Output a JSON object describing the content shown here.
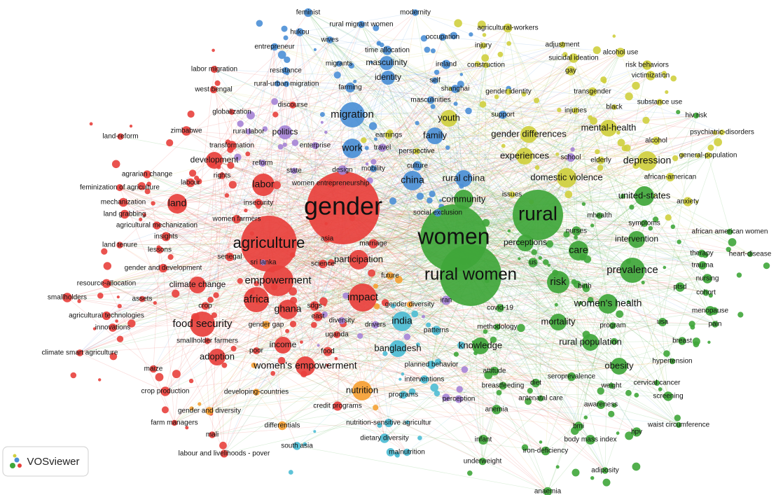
{
  "nodes": [
    {
      "label": "gender",
      "color": "#e8403c"
    },
    {
      "label": "women",
      "color": "#3fa63a"
    },
    {
      "label": "rural women",
      "color": "#3fa63a"
    },
    {
      "label": "rural",
      "color": "#3fa63a"
    },
    {
      "label": "agriculture",
      "color": "#e8403c"
    },
    {
      "label": "empowerment",
      "color": "#e8403c"
    },
    {
      "label": "food security",
      "color": "#e8403c"
    },
    {
      "label": "migration",
      "color": "#4b8fd6"
    },
    {
      "label": "africa",
      "color": "#e8403c"
    },
    {
      "label": "impact",
      "color": "#e8403c"
    },
    {
      "label": "prevalence",
      "color": "#3fa63a"
    },
    {
      "label": "women's health",
      "color": "#3fa63a"
    },
    {
      "label": "women's empowerment",
      "color": "#e8403c"
    },
    {
      "label": "labor",
      "color": "#e8403c"
    },
    {
      "label": "land",
      "color": "#e8403c"
    },
    {
      "label": "mental-health",
      "color": "#cfcf3e"
    },
    {
      "label": "depression",
      "color": "#cfcf3e"
    },
    {
      "label": "domestic violence",
      "color": "#cfcf3e"
    },
    {
      "label": "risk",
      "color": "#3fa63a"
    },
    {
      "label": "india",
      "color": "#4cbcd4"
    },
    {
      "label": "bangladesh",
      "color": "#4cbcd4"
    },
    {
      "label": "nutrition",
      "color": "#f5a033"
    },
    {
      "label": "adoption",
      "color": "#e8403c"
    },
    {
      "label": "ghana",
      "color": "#e8403c"
    },
    {
      "label": "gender differences",
      "color": "#cfcf3e"
    },
    {
      "label": "experiences",
      "color": "#cfcf3e"
    },
    {
      "label": "community",
      "color": "#3fa63a"
    },
    {
      "label": "rural china",
      "color": "#4b8fd6"
    },
    {
      "label": "china",
      "color": "#4b8fd6"
    },
    {
      "label": "work",
      "color": "#4b8fd6"
    },
    {
      "label": "participation",
      "color": "#e8403c"
    },
    {
      "label": "knowledge",
      "color": "#3fa63a"
    },
    {
      "label": "care",
      "color": "#3fa63a"
    },
    {
      "label": "mortality",
      "color": "#3fa63a"
    },
    {
      "label": "rural population",
      "color": "#3fa63a"
    },
    {
      "label": "obesity",
      "color": "#3fa63a"
    },
    {
      "label": "united-states",
      "color": "#3fa63a"
    },
    {
      "label": "intervention",
      "color": "#3fa63a"
    },
    {
      "label": "youth",
      "color": "#cfcf3e"
    },
    {
      "label": "family",
      "color": "#4b8fd6"
    },
    {
      "label": "development",
      "color": "#e8403c"
    },
    {
      "label": "climate change",
      "color": "#e8403c"
    },
    {
      "label": "income",
      "color": "#e8403c"
    },
    {
      "label": "politics",
      "color": "#a583d6"
    },
    {
      "label": "identity",
      "color": "#4b8fd6"
    },
    {
      "label": "masculinity",
      "color": "#4b8fd6"
    },
    {
      "label": "perceptions",
      "color": "#3fa63a"
    },
    {
      "label": "globalization",
      "color": "#e8403c"
    },
    {
      "label": "transformation",
      "color": "#e8403c"
    },
    {
      "label": "rights",
      "color": "#e8403c"
    },
    {
      "label": "state",
      "color": "#a583d6"
    },
    {
      "label": "labour",
      "color": "#e8403c"
    },
    {
      "label": "agrarian change",
      "color": "#e8403c"
    },
    {
      "label": "feminization of agriculture",
      "color": "#e8403c"
    },
    {
      "label": "mechanization",
      "color": "#e8403c"
    },
    {
      "label": "land grabbing",
      "color": "#e8403c"
    },
    {
      "label": "agricultural mechanization",
      "color": "#e8403c"
    },
    {
      "label": "women farmers",
      "color": "#e8403c"
    },
    {
      "label": "insecurity",
      "color": "#e8403c"
    },
    {
      "label": "insights",
      "color": "#e8403c"
    },
    {
      "label": "land tenure",
      "color": "#e8403c"
    },
    {
      "label": "lessons",
      "color": "#e8403c"
    },
    {
      "label": "senegal",
      "color": "#e8403c"
    },
    {
      "label": "gender and development",
      "color": "#e8403c"
    },
    {
      "label": "sri lanka",
      "color": "#a583d6"
    },
    {
      "label": "science",
      "color": "#e8403c"
    },
    {
      "label": "asia",
      "color": "#e8403c"
    },
    {
      "label": "marriage",
      "color": "#e8403c"
    },
    {
      "label": "resource-allocation",
      "color": "#e8403c"
    },
    {
      "label": "assets",
      "color": "#e8403c"
    },
    {
      "label": "crop",
      "color": "#e8403c"
    },
    {
      "label": "smallholders",
      "color": "#e8403c"
    },
    {
      "label": "agricultural technologies",
      "color": "#e8403c"
    },
    {
      "label": "innovations",
      "color": "#e8403c"
    },
    {
      "label": "gender gap",
      "color": "#f5a033"
    },
    {
      "label": "sdgs",
      "color": "#e8403c"
    },
    {
      "label": "east",
      "color": "#e8403c"
    },
    {
      "label": "diversity",
      "color": "#a583d6"
    },
    {
      "label": "uganda",
      "color": "#e8403c"
    },
    {
      "label": "food",
      "color": "#e8403c"
    },
    {
      "label": "poor",
      "color": "#e8403c"
    },
    {
      "label": "smallholder farmers",
      "color": "#e8403c"
    },
    {
      "label": "climate smart agriculture",
      "color": "#e8403c"
    },
    {
      "label": "maize",
      "color": "#e8403c"
    },
    {
      "label": "developing-countries",
      "color": "#f5a033"
    },
    {
      "label": "crop production",
      "color": "#e8403c"
    },
    {
      "label": "gender and diversity",
      "color": "#f5a033"
    },
    {
      "label": "differentials",
      "color": "#f5a033"
    },
    {
      "label": "credit programs",
      "color": "#e8403c"
    },
    {
      "label": "farm managers",
      "color": "#e8403c"
    },
    {
      "label": "mali",
      "color": "#e8403c"
    },
    {
      "label": "south asia",
      "color": "#4cbcd4"
    },
    {
      "label": "labour and livelihoods - pover",
      "color": "#e8403c"
    },
    {
      "label": "west bengal",
      "color": "#e8403c"
    },
    {
      "label": "land-reform",
      "color": "#e8403c"
    },
    {
      "label": "zimbabwe",
      "color": "#e8403c"
    },
    {
      "label": "rural labor",
      "color": "#a583d6"
    },
    {
      "label": "enterprise",
      "color": "#a583d6"
    },
    {
      "label": "reform",
      "color": "#a583d6"
    },
    {
      "label": "women entrepreneurship",
      "color": "#e8403c"
    },
    {
      "label": "design",
      "color": "#a583d6"
    },
    {
      "label": "future",
      "color": "#f5a033"
    },
    {
      "label": "gender diversity",
      "color": "#f5a033"
    },
    {
      "label": "drivers",
      "color": "#a583d6"
    },
    {
      "label": "discourse",
      "color": "#e8403c"
    },
    {
      "label": "labor migration",
      "color": "#e8403c"
    },
    {
      "label": "entrepreneur",
      "color": "#4b8fd6"
    },
    {
      "label": "mobility",
      "color": "#4b8fd6"
    },
    {
      "label": "earnings",
      "color": "#cfcf3e"
    },
    {
      "label": "travel",
      "color": "#a583d6"
    },
    {
      "label": "perspective",
      "color": "#cfcf3e"
    },
    {
      "label": "culture",
      "color": "#4b8fd6"
    },
    {
      "label": "social exclusion",
      "color": "#4b8fd6"
    },
    {
      "label": "iran",
      "color": "#a583d6"
    },
    {
      "label": "planned behavior",
      "color": "#4cbcd4"
    },
    {
      "label": "interventions",
      "color": "#4cbcd4"
    },
    {
      "label": "programs",
      "color": "#4cbcd4"
    },
    {
      "label": "perception",
      "color": "#a583d6"
    },
    {
      "label": "nutrition-sensitive agricultur",
      "color": "#4cbcd4"
    },
    {
      "label": "dietary diversity",
      "color": "#4cbcd4"
    },
    {
      "label": "malnutrition",
      "color": "#4cbcd4"
    },
    {
      "label": "feminist",
      "color": "#4b8fd6"
    },
    {
      "label": "modernity",
      "color": "#4b8fd6"
    },
    {
      "label": "hukou",
      "color": "#4b8fd6"
    },
    {
      "label": "rural migrant women",
      "color": "#4b8fd6"
    },
    {
      "label": "wives",
      "color": "#4b8fd6"
    },
    {
      "label": "occupation",
      "color": "#4b8fd6"
    },
    {
      "label": "agricultural-workers",
      "color": "#cfcf3e"
    },
    {
      "label": "time allocation",
      "color": "#4b8fd6"
    },
    {
      "label": "migrants",
      "color": "#4b8fd6"
    },
    {
      "label": "ireland",
      "color": "#4b8fd6"
    },
    {
      "label": "construction",
      "color": "#cfcf3e"
    },
    {
      "label": "resistance",
      "color": "#4b8fd6"
    },
    {
      "label": "injury",
      "color": "#cfcf3e"
    },
    {
      "label": "rural-urban migration",
      "color": "#4b8fd6"
    },
    {
      "label": "farming",
      "color": "#4b8fd6"
    },
    {
      "label": "self",
      "color": "#4b8fd6"
    },
    {
      "label": "shanghai",
      "color": "#4b8fd6"
    },
    {
      "label": "gender identity",
      "color": "#cfcf3e"
    },
    {
      "label": "masculinities",
      "color": "#4b8fd6"
    },
    {
      "label": "support",
      "color": "#4b8fd6"
    },
    {
      "label": "adjustment",
      "color": "#cfcf3e"
    },
    {
      "label": "suicidal ideation",
      "color": "#cfcf3e"
    },
    {
      "label": "alcohol use",
      "color": "#cfcf3e"
    },
    {
      "label": "risk behaviors",
      "color": "#cfcf3e"
    },
    {
      "label": "gay",
      "color": "#cfcf3e"
    },
    {
      "label": "victimization",
      "color": "#cfcf3e"
    },
    {
      "label": "transgender",
      "color": "#cfcf3e"
    },
    {
      "label": "substance use",
      "color": "#cfcf3e"
    },
    {
      "label": "black",
      "color": "#cfcf3e"
    },
    {
      "label": "injuries",
      "color": "#cfcf3e"
    },
    {
      "label": "hiv risk",
      "color": "#3fa63a"
    },
    {
      "label": "psychiatric-disorders",
      "color": "#cfcf3e"
    },
    {
      "label": "alcohol",
      "color": "#cfcf3e"
    },
    {
      "label": "general-population",
      "color": "#cfcf3e"
    },
    {
      "label": "school",
      "color": "#a583d6"
    },
    {
      "label": "elderly",
      "color": "#cfcf3e"
    },
    {
      "label": "african-american",
      "color": "#cfcf3e"
    },
    {
      "label": "issues",
      "color": "#cfcf3e"
    },
    {
      "label": "anxiety",
      "color": "#cfcf3e"
    },
    {
      "label": "mhealth",
      "color": "#3fa63a"
    },
    {
      "label": "symptoms",
      "color": "#3fa63a"
    },
    {
      "label": "nurses",
      "color": "#3fa63a"
    },
    {
      "label": "african american women",
      "color": "#3fa63a"
    },
    {
      "label": "therapy",
      "color": "#3fa63a"
    },
    {
      "label": "heart-disease",
      "color": "#3fa63a"
    },
    {
      "label": "us",
      "color": "#3fa63a"
    },
    {
      "label": "trauma",
      "color": "#3fa63a"
    },
    {
      "label": "nursing",
      "color": "#3fa63a"
    },
    {
      "label": "birth",
      "color": "#3fa63a"
    },
    {
      "label": "ptsd",
      "color": "#3fa63a"
    },
    {
      "label": "cohort",
      "color": "#3fa63a"
    },
    {
      "label": "menopause",
      "color": "#3fa63a"
    },
    {
      "label": "covid-19",
      "color": "#3fa63a"
    },
    {
      "label": "usa",
      "color": "#3fa63a"
    },
    {
      "label": "pain",
      "color": "#3fa63a"
    },
    {
      "label": "program",
      "color": "#3fa63a"
    },
    {
      "label": "methodology",
      "color": "#3fa63a"
    },
    {
      "label": "breast",
      "color": "#3fa63a"
    },
    {
      "label": "hypertension",
      "color": "#3fa63a"
    },
    {
      "label": "attitude",
      "color": "#3fa63a"
    },
    {
      "label": "seroprevalence",
      "color": "#3fa63a"
    },
    {
      "label": "diet",
      "color": "#3fa63a"
    },
    {
      "label": "breastfeeding",
      "color": "#3fa63a"
    },
    {
      "label": "cervical cancer",
      "color": "#3fa63a"
    },
    {
      "label": "weight",
      "color": "#3fa63a"
    },
    {
      "label": "screening",
      "color": "#3fa63a"
    },
    {
      "label": "antenatal care",
      "color": "#3fa63a"
    },
    {
      "label": "awareness",
      "color": "#3fa63a"
    },
    {
      "label": "anemia",
      "color": "#3fa63a"
    },
    {
      "label": "waist circumference",
      "color": "#3fa63a"
    },
    {
      "label": "bmi",
      "color": "#3fa63a"
    },
    {
      "label": "hpv",
      "color": "#3fa63a"
    },
    {
      "label": "infant",
      "color": "#3fa63a"
    },
    {
      "label": "body mass index",
      "color": "#3fa63a"
    },
    {
      "label": "iron-deficiency",
      "color": "#3fa63a"
    },
    {
      "label": "underweight",
      "color": "#3fa63a"
    },
    {
      "label": "adiposity",
      "color": "#3fa63a"
    },
    {
      "label": "anaemia",
      "color": "#3fa63a"
    },
    {
      "label": "patterns",
      "color": "#4cbcd4"
    }
  ],
  "logo": "VOSviewer"
}
